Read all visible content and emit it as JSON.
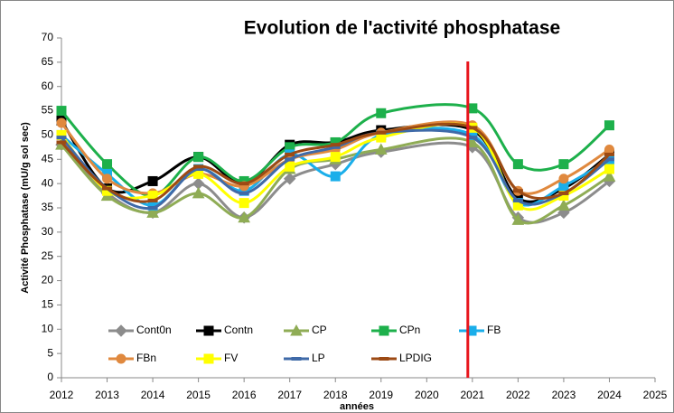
{
  "chart_data": {
    "type": "line",
    "title": "Evolution de l'activité phosphatase",
    "x_label": "années",
    "y_label": "Activité Phosphatase (mU/g sol sec)",
    "x": [
      2012,
      2013,
      2014,
      2015,
      2016,
      2017,
      2018,
      2019,
      2021,
      2022,
      2023,
      2024
    ],
    "xlim": [
      2012,
      2025
    ],
    "xticks": [
      2012,
      2013,
      2014,
      2015,
      2016,
      2017,
      2018,
      2019,
      2020,
      2021,
      2022,
      2023,
      2024,
      2025
    ],
    "ylim": [
      0,
      70
    ],
    "yticks": [
      0,
      5,
      10,
      15,
      20,
      25,
      30,
      35,
      40,
      45,
      50,
      55,
      60,
      65,
      70
    ],
    "smooth": true,
    "vline": {
      "x": 2020.9,
      "color": "#e8141b"
    },
    "series": [
      {
        "name": "Cont0n",
        "color": "#8c8c8c",
        "marker": "diamond",
        "values": [
          48,
          38,
          34,
          40,
          33,
          41,
          44,
          46.5,
          47.5,
          33,
          34,
          40.5
        ]
      },
      {
        "name": "Contn",
        "color": "#000000",
        "marker": "square",
        "values": [
          53,
          39,
          40.5,
          45.5,
          40,
          48,
          48.5,
          51,
          51,
          37,
          39,
          46
        ]
      },
      {
        "name": "CP",
        "color": "#8fac55",
        "marker": "triangle",
        "values": [
          48,
          37.5,
          34,
          38,
          33,
          43,
          45,
          47,
          48.5,
          32.5,
          35.5,
          41.5
        ]
      },
      {
        "name": "CPn",
        "color": "#1db04b",
        "marker": "square",
        "values": [
          55,
          44,
          37.5,
          45.5,
          40.5,
          47.5,
          48.5,
          54.5,
          55.5,
          44,
          44,
          52
        ]
      },
      {
        "name": "FB",
        "color": "#1aaeea",
        "marker": "square",
        "values": [
          50,
          42,
          35.5,
          43,
          38.5,
          46,
          41.5,
          50,
          50,
          36,
          39.5,
          45
        ]
      },
      {
        "name": "FBn",
        "color": "#e0893e",
        "marker": "circle",
        "values": [
          52.5,
          41,
          38,
          42,
          39.5,
          45,
          47,
          50.5,
          52,
          38.5,
          41,
          47
        ]
      },
      {
        "name": "FV",
        "color": "#ffff00",
        "marker": "square",
        "values": [
          50,
          38.5,
          37.5,
          42,
          36,
          43.5,
          45.5,
          49.5,
          51.5,
          35.5,
          37.5,
          43
        ]
      },
      {
        "name": "LP",
        "color": "#3f6aa8",
        "marker": "dash",
        "values": [
          49.5,
          39,
          35,
          43,
          38,
          45,
          47.5,
          50.5,
          49.5,
          36.5,
          38,
          45
        ]
      },
      {
        "name": "LPDIG",
        "color": "#9c4a14",
        "marker": "dash",
        "values": [
          48.5,
          39,
          36.5,
          43.5,
          40,
          46,
          48,
          50.5,
          51.5,
          38.5,
          38,
          46
        ]
      }
    ]
  }
}
